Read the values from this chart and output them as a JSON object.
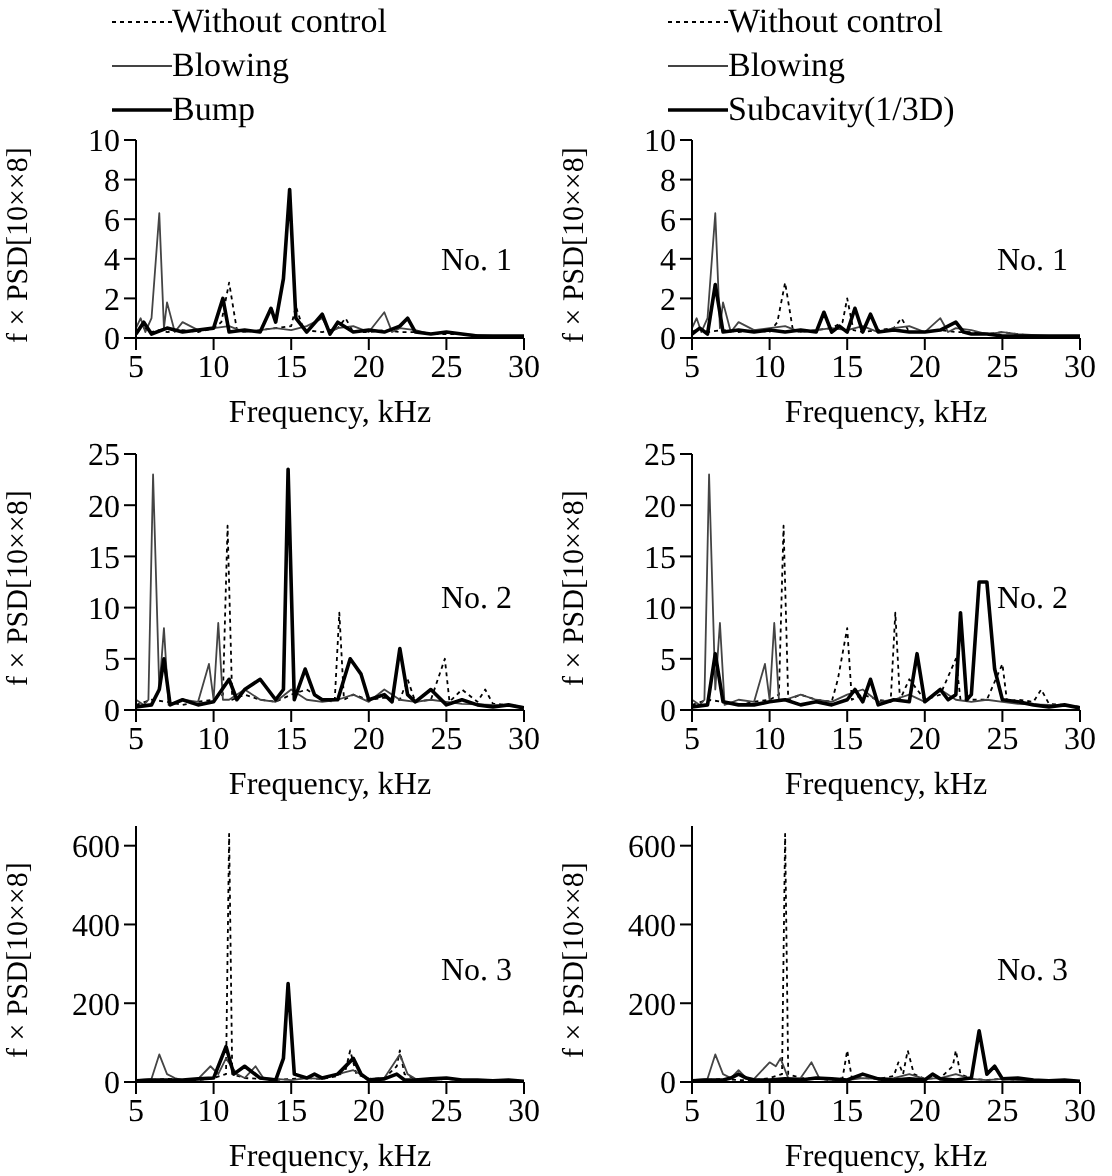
{
  "chart_data": [
    {
      "type": "line",
      "xlabel": "Frequency, kHz",
      "ylabel": "f × PSD[10××8]",
      "xlim": [
        5,
        30
      ],
      "xticks": [
        5,
        10,
        15,
        20,
        25,
        30
      ],
      "ylim": [
        0,
        10
      ],
      "yticks": [
        0,
        2,
        4,
        6,
        8,
        10
      ],
      "legend": "top",
      "marker": "none",
      "annotations": [
        "No. 1"
      ],
      "series": [
        {
          "name": "Without control",
          "color": "#000000",
          "line_style": "dotted",
          "x": [
            5,
            5.5,
            6,
            6.5,
            7,
            8,
            9,
            10,
            10.5,
            11,
            11.5,
            12,
            13,
            14,
            15,
            15.3,
            15.8,
            17,
            18,
            18.5,
            19,
            20,
            21,
            22,
            23,
            24,
            25,
            26,
            27,
            28,
            29,
            30
          ],
          "values": [
            0.3,
            0.5,
            0.3,
            0.4,
            0.3,
            0.4,
            0.3,
            0.5,
            0.8,
            2.8,
            0.4,
            0.3,
            0.4,
            0.5,
            0.6,
            1.6,
            0.4,
            0.3,
            0.5,
            1,
            0.3,
            0.3,
            0.4,
            0.3,
            0.3,
            0.2,
            0.2,
            0.2,
            0.1,
            0.1,
            0.1,
            0.1
          ]
        },
        {
          "name": "Blowing",
          "color": "#444444",
          "line_style": "solid",
          "x": [
            5,
            5.3,
            5.6,
            6,
            6.5,
            6.8,
            7,
            7.5,
            8,
            9,
            10,
            11,
            12,
            13,
            14,
            15,
            16,
            17,
            17.5,
            18,
            19,
            20,
            21,
            21.5,
            22,
            23,
            24,
            25,
            26,
            28,
            30
          ],
          "values": [
            0.5,
            1,
            0.3,
            1,
            6.3,
            0.5,
            1.8,
            0.3,
            0.8,
            0.4,
            0.5,
            0.6,
            0.3,
            0.4,
            0.5,
            0.4,
            0.6,
            1,
            0.3,
            0.5,
            0.6,
            0.3,
            1.3,
            0.3,
            0.5,
            0.4,
            0.2,
            0.3,
            0.2,
            0.1,
            0.1
          ]
        },
        {
          "name": "Bump",
          "color": "#000000",
          "line_style": "solid",
          "x": [
            5,
            5.5,
            6,
            7,
            8,
            9,
            10,
            10.6,
            11,
            12,
            13,
            13.7,
            14,
            14.5,
            14.9,
            15.3,
            16,
            17,
            17.5,
            18,
            19,
            20,
            21,
            22,
            22.5,
            23,
            24,
            25,
            26,
            27,
            28,
            29,
            30
          ],
          "values": [
            0.2,
            0.8,
            0.2,
            0.5,
            0.3,
            0.4,
            0.5,
            2,
            0.3,
            0.4,
            0.3,
            1.5,
            0.8,
            3,
            7.5,
            1,
            0.3,
            1.2,
            0.2,
            0.8,
            0.3,
            0.4,
            0.3,
            0.6,
            1,
            0.3,
            0.2,
            0.3,
            0.2,
            0.1,
            0.1,
            0.1,
            0.1
          ]
        }
      ]
    },
    {
      "type": "line",
      "xlabel": "Frequency, kHz",
      "ylabel": "f × PSD[10××8]",
      "xlim": [
        5,
        30
      ],
      "xticks": [
        5,
        10,
        15,
        20,
        25,
        30
      ],
      "ylim": [
        0,
        10
      ],
      "yticks": [
        0,
        2,
        4,
        6,
        8,
        10
      ],
      "legend": "top",
      "marker": "none",
      "annotations": [
        "No. 1"
      ],
      "series": [
        {
          "name": "Without control",
          "color": "#000000",
          "line_style": "dotted",
          "x": [
            5,
            5.5,
            6,
            7,
            8,
            9,
            10,
            10.5,
            11,
            11.5,
            12,
            13,
            14,
            14.7,
            15,
            15.4,
            16,
            17,
            18,
            18.5,
            19,
            20,
            21,
            22,
            23,
            24,
            25,
            26,
            27,
            28,
            29,
            30
          ],
          "values": [
            0.3,
            0.5,
            0.3,
            0.4,
            0.3,
            0.4,
            0.3,
            0.8,
            2.8,
            0.4,
            0.3,
            0.4,
            0.5,
            0.8,
            2,
            0.4,
            0.3,
            0.4,
            0.5,
            1,
            0.3,
            0.3,
            0.4,
            0.3,
            0.3,
            0.2,
            0.3,
            0.2,
            0.1,
            0.1,
            0.1,
            0.1
          ]
        },
        {
          "name": "Blowing",
          "color": "#444444",
          "line_style": "solid",
          "x": [
            5,
            5.3,
            5.6,
            6,
            6.5,
            6.8,
            7,
            7.5,
            8,
            9,
            10,
            11,
            12,
            13,
            14,
            15,
            16,
            17,
            18,
            19,
            20,
            21,
            21.5,
            22,
            23,
            24,
            25,
            26,
            28,
            30
          ],
          "values": [
            0.5,
            1,
            0.3,
            1,
            6.3,
            0.5,
            1.8,
            0.3,
            0.8,
            0.4,
            0.5,
            0.6,
            0.3,
            0.4,
            0.5,
            0.4,
            0.6,
            0.3,
            0.5,
            0.6,
            0.3,
            1,
            0.3,
            0.5,
            0.4,
            0.2,
            0.3,
            0.2,
            0.1,
            0.1
          ]
        },
        {
          "name": "Subcavity(1/3D)",
          "color": "#000000",
          "line_style": "solid",
          "x": [
            5,
            5.5,
            6,
            6.5,
            7,
            8,
            9,
            10,
            11,
            12,
            13,
            13.5,
            14,
            14.5,
            15,
            15.5,
            16,
            16.5,
            17,
            18,
            19,
            20,
            21,
            22,
            22.5,
            23,
            24,
            25,
            26,
            28,
            30
          ],
          "values": [
            0.2,
            0.5,
            0.2,
            2.7,
            0.3,
            0.4,
            0.3,
            0.4,
            0.3,
            0.4,
            0.3,
            1.3,
            0.3,
            0.6,
            0.3,
            1.5,
            0.3,
            1.2,
            0.3,
            0.4,
            0.3,
            0.3,
            0.4,
            0.8,
            0.3,
            0.2,
            0.2,
            0.1,
            0.1,
            0.1,
            0.1
          ]
        }
      ]
    },
    {
      "type": "line",
      "xlabel": "Frequency, kHz",
      "ylabel": "f × PSD[10××8]",
      "xlim": [
        5,
        30
      ],
      "xticks": [
        5,
        10,
        15,
        20,
        25,
        30
      ],
      "ylim": [
        0,
        25
      ],
      "yticks": [
        0,
        5,
        10,
        15,
        20,
        25
      ],
      "marker": "none",
      "annotations": [
        "No. 2"
      ],
      "series": [
        {
          "color": "#000000",
          "line_style": "dotted",
          "x": [
            5,
            6,
            7,
            8,
            9,
            10,
            10.6,
            10.9,
            11.2,
            12,
            13,
            14,
            15,
            16,
            17,
            17.8,
            18.1,
            18.4,
            19,
            20,
            21,
            22,
            22.5,
            23,
            24,
            24.9,
            25.2,
            26,
            27,
            27.5,
            28,
            29,
            30
          ],
          "values": [
            0.5,
            1,
            0.8,
            0.5,
            0.8,
            1,
            1.5,
            18,
            1,
            1.5,
            1,
            0.8,
            1.5,
            2,
            1,
            0.8,
            9.5,
            1,
            1.5,
            1,
            1.2,
            1,
            3,
            0.8,
            1,
            5,
            0.8,
            2,
            0.8,
            2,
            0.6,
            0.5,
            0.3
          ]
        },
        {
          "color": "#444444",
          "line_style": "solid",
          "x": [
            5,
            5.5,
            5.8,
            6.1,
            6.5,
            6.8,
            7.1,
            8,
            9,
            9.7,
            10,
            10.3,
            10.6,
            11,
            12,
            13,
            14,
            15,
            16,
            17,
            18,
            19,
            20,
            21,
            22,
            23,
            24,
            25,
            26,
            28,
            30
          ],
          "values": [
            1,
            0.5,
            1,
            23,
            2,
            8,
            0.5,
            1,
            0.8,
            4.5,
            1,
            8.5,
            1,
            1,
            2,
            1,
            0.8,
            2,
            1,
            0.8,
            1,
            1.5,
            0.8,
            2,
            1,
            0.8,
            1,
            0.8,
            0.6,
            0.5,
            0.3
          ]
        },
        {
          "color": "#000000",
          "line_style": "solid",
          "x": [
            5,
            6,
            6.5,
            6.8,
            7.2,
            8,
            9,
            10,
            11,
            11.5,
            12,
            13,
            14,
            14.5,
            14.8,
            15.2,
            15.9,
            16.5,
            17,
            18,
            18.8,
            19.5,
            20,
            21,
            21.5,
            22,
            22.5,
            23,
            24,
            25,
            26,
            27,
            28,
            29,
            30
          ],
          "values": [
            0.3,
            0.5,
            2,
            5,
            0.5,
            1,
            0.5,
            0.8,
            3,
            1,
            2,
            3,
            1,
            2,
            23.5,
            1,
            4,
            1.5,
            1,
            1,
            5,
            3.5,
            1,
            1.5,
            0.8,
            6,
            1.5,
            0.8,
            2,
            0.5,
            1,
            0.5,
            0.3,
            0.5,
            0.2
          ]
        }
      ]
    },
    {
      "type": "line",
      "xlabel": "Frequency, kHz",
      "ylabel": "f × PSD[10××8]",
      "xlim": [
        5,
        30
      ],
      "xticks": [
        5,
        10,
        15,
        20,
        25,
        30
      ],
      "ylim": [
        0,
        25
      ],
      "yticks": [
        0,
        5,
        10,
        15,
        20,
        25
      ],
      "marker": "none",
      "annotations": [
        "No. 2"
      ],
      "series": [
        {
          "color": "#000000",
          "line_style": "dotted",
          "x": [
            5,
            6,
            7,
            8,
            9,
            10,
            10.6,
            10.9,
            11.2,
            12,
            13,
            14,
            14.4,
            15,
            15.3,
            16,
            17,
            17.8,
            18.1,
            18.4,
            19,
            20,
            21,
            22,
            22.3,
            23,
            24,
            25,
            25.3,
            26,
            27,
            27.5,
            28,
            29,
            30
          ],
          "values": [
            0.5,
            1,
            0.8,
            0.5,
            0.8,
            1,
            1.5,
            18,
            1,
            1.5,
            1,
            0.8,
            3,
            8,
            1,
            1.5,
            1,
            0.8,
            9.5,
            1,
            3,
            1,
            1.5,
            5,
            1,
            1,
            1,
            4.5,
            0.8,
            1,
            0.8,
            2,
            0.6,
            0.5,
            0.3
          ]
        },
        {
          "color": "#444444",
          "line_style": "solid",
          "x": [
            5,
            5.5,
            5.8,
            6.1,
            6.5,
            6.8,
            7.1,
            8,
            9,
            9.7,
            10,
            10.3,
            10.6,
            11,
            12,
            13,
            14,
            15,
            16,
            17,
            18,
            19,
            20,
            21,
            22,
            23,
            24,
            25,
            26,
            28,
            30
          ],
          "values": [
            1,
            0.5,
            1,
            23,
            2,
            8.5,
            0.5,
            1,
            0.8,
            4.5,
            1,
            8.5,
            1,
            1,
            1.5,
            1,
            0.8,
            1.5,
            2,
            0.8,
            1,
            1.5,
            0.8,
            2,
            1,
            0.8,
            1,
            0.8,
            0.6,
            0.5,
            0.3
          ]
        },
        {
          "color": "#000000",
          "line_style": "solid",
          "x": [
            5,
            6,
            6.5,
            7,
            8,
            9,
            10,
            11,
            12,
            13,
            14,
            15,
            15.5,
            16,
            16.5,
            17,
            18,
            19,
            19.5,
            20,
            21,
            21.5,
            22,
            22.3,
            22.7,
            23,
            23.5,
            24,
            24.5,
            25,
            26,
            27,
            28,
            29,
            30
          ],
          "values": [
            0.3,
            0.5,
            5.5,
            0.8,
            0.5,
            0.5,
            0.8,
            1,
            0.5,
            0.8,
            0.5,
            1,
            2,
            0.8,
            3,
            0.5,
            1,
            0.8,
            5.5,
            0.8,
            2,
            1,
            1.5,
            9.5,
            1,
            1.5,
            12.5,
            12.5,
            4,
            1,
            0.8,
            0.5,
            0.3,
            0.5,
            0.2
          ]
        }
      ]
    },
    {
      "type": "line",
      "xlabel": "Frequency, kHz",
      "ylabel": "f × PSD[10××8]",
      "xlim": [
        5,
        30
      ],
      "xticks": [
        5,
        10,
        15,
        20,
        25,
        30
      ],
      "ylim": [
        0,
        650
      ],
      "yticks": [
        0,
        200,
        400,
        600
      ],
      "marker": "none",
      "annotations": [
        "No. 3"
      ],
      "series": [
        {
          "color": "#000000",
          "line_style": "dotted",
          "x": [
            5,
            6,
            7,
            8,
            9,
            10,
            10.8,
            11,
            11.2,
            12,
            13,
            14,
            15,
            16,
            17,
            18,
            18.5,
            18.8,
            19.2,
            20,
            21,
            21.8,
            22,
            22.3,
            23,
            24,
            25,
            26,
            28,
            30
          ],
          "values": [
            5,
            5,
            8,
            5,
            5,
            10,
            20,
            630,
            20,
            10,
            8,
            5,
            8,
            10,
            8,
            15,
            30,
            80,
            20,
            8,
            10,
            40,
            80,
            20,
            8,
            5,
            8,
            5,
            3,
            2
          ]
        },
        {
          "color": "#444444",
          "line_style": "solid",
          "x": [
            5,
            6,
            6.5,
            7,
            7.5,
            8,
            9,
            9.8,
            10.3,
            10.8,
            11.5,
            12,
            12.7,
            13.2,
            14,
            15,
            16,
            17,
            18,
            19,
            20,
            21,
            22,
            22.5,
            23,
            24,
            25,
            26,
            28,
            30
          ],
          "values": [
            5,
            8,
            70,
            20,
            10,
            5,
            8,
            40,
            20,
            60,
            20,
            10,
            40,
            10,
            8,
            5,
            10,
            8,
            20,
            30,
            8,
            10,
            70,
            20,
            8,
            5,
            8,
            5,
            3,
            2
          ]
        },
        {
          "color": "#000000",
          "line_style": "solid",
          "x": [
            5,
            6,
            7,
            8,
            9,
            10,
            10.8,
            11.3,
            12,
            13,
            14,
            14.5,
            14.8,
            15.2,
            16,
            16.5,
            17,
            18,
            19,
            19.5,
            20,
            21,
            21.8,
            22.3,
            23,
            24,
            25,
            26,
            27,
            28,
            29,
            30
          ],
          "values": [
            3,
            5,
            5,
            5,
            8,
            10,
            90,
            20,
            40,
            10,
            5,
            60,
            250,
            20,
            10,
            20,
            10,
            20,
            60,
            20,
            5,
            8,
            20,
            5,
            5,
            8,
            10,
            5,
            5,
            3,
            5,
            2
          ]
        }
      ]
    },
    {
      "type": "line",
      "xlabel": "Frequency, kHz",
      "ylabel": "f × PSD[10××8]",
      "xlim": [
        5,
        30
      ],
      "xticks": [
        5,
        10,
        15,
        20,
        25,
        30
      ],
      "ylim": [
        0,
        650
      ],
      "yticks": [
        0,
        200,
        400,
        600
      ],
      "marker": "none",
      "annotations": [
        "No. 3"
      ],
      "series": [
        {
          "color": "#000000",
          "line_style": "dotted",
          "x": [
            5,
            6,
            7,
            8,
            9,
            10,
            10.8,
            11,
            11.2,
            12,
            13,
            14,
            14.7,
            15,
            15.3,
            16,
            17,
            18,
            18.3,
            18.6,
            18.9,
            19.3,
            20,
            21,
            21.8,
            22,
            22.3,
            23,
            24,
            25,
            26,
            28,
            30
          ],
          "values": [
            5,
            5,
            8,
            5,
            5,
            10,
            20,
            630,
            20,
            10,
            8,
            5,
            10,
            80,
            10,
            10,
            8,
            15,
            50,
            20,
            80,
            20,
            8,
            10,
            40,
            80,
            20,
            8,
            5,
            8,
            5,
            3,
            2
          ]
        },
        {
          "color": "#444444",
          "line_style": "solid",
          "x": [
            5,
            6,
            6.5,
            7,
            7.5,
            8,
            8.5,
            9,
            10,
            10.4,
            10.7,
            11.2,
            12,
            12.7,
            13.2,
            14,
            15,
            16,
            17,
            18,
            19,
            20,
            21,
            22,
            23,
            24,
            25,
            26,
            28,
            30
          ],
          "values": [
            5,
            8,
            70,
            20,
            10,
            30,
            10,
            8,
            50,
            40,
            60,
            10,
            10,
            50,
            10,
            8,
            5,
            10,
            8,
            10,
            20,
            8,
            10,
            20,
            8,
            5,
            8,
            5,
            3,
            2
          ]
        },
        {
          "color": "#000000",
          "line_style": "solid",
          "x": [
            5,
            6,
            7,
            7.5,
            8,
            8.5,
            9,
            10,
            11,
            12,
            13,
            14,
            15,
            16,
            17,
            18,
            19,
            20,
            20.5,
            21,
            22,
            23,
            23.5,
            24,
            24.5,
            25,
            26,
            27,
            28,
            29,
            30
          ],
          "values": [
            3,
            5,
            5,
            10,
            20,
            10,
            5,
            5,
            8,
            5,
            10,
            8,
            5,
            20,
            8,
            5,
            8,
            5,
            20,
            8,
            5,
            10,
            130,
            20,
            40,
            8,
            10,
            5,
            3,
            5,
            2
          ]
        }
      ]
    }
  ]
}
